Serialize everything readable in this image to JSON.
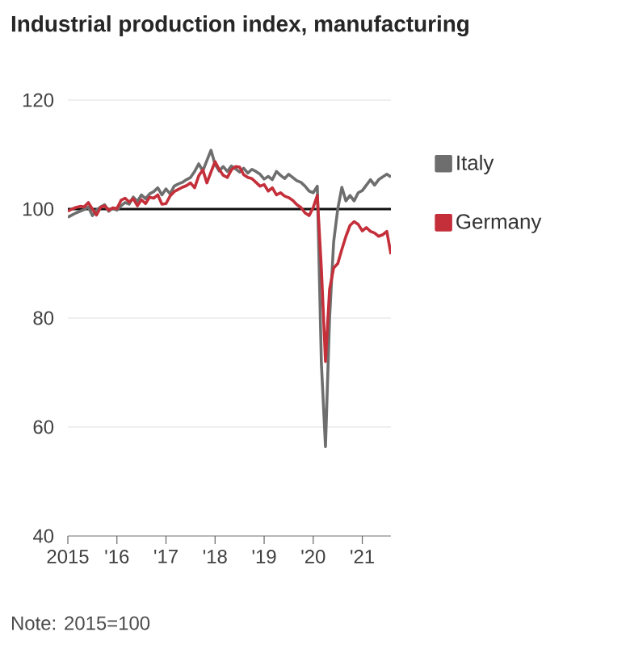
{
  "chart_data": {
    "type": "line",
    "title": "Industrial production index, manufacturing",
    "annotations": [
      "Note: 2015=100"
    ],
    "x": [
      "2015-01",
      "2015-02",
      "2015-03",
      "2015-04",
      "2015-05",
      "2015-06",
      "2015-07",
      "2015-08",
      "2015-09",
      "2015-10",
      "2015-11",
      "2015-12",
      "2016-01",
      "2016-02",
      "2016-03",
      "2016-04",
      "2016-05",
      "2016-06",
      "2016-07",
      "2016-08",
      "2016-09",
      "2016-10",
      "2016-11",
      "2016-12",
      "2017-01",
      "2017-02",
      "2017-03",
      "2017-04",
      "2017-05",
      "2017-06",
      "2017-07",
      "2017-08",
      "2017-09",
      "2017-10",
      "2017-11",
      "2017-12",
      "2018-01",
      "2018-02",
      "2018-03",
      "2018-04",
      "2018-05",
      "2018-06",
      "2018-07",
      "2018-08",
      "2018-09",
      "2018-10",
      "2018-11",
      "2018-12",
      "2019-01",
      "2019-02",
      "2019-03",
      "2019-04",
      "2019-05",
      "2019-06",
      "2019-07",
      "2019-08",
      "2019-09",
      "2019-10",
      "2019-11",
      "2019-12",
      "2020-01",
      "2020-02",
      "2020-03",
      "2020-04",
      "2020-05",
      "2020-06",
      "2020-07",
      "2020-08",
      "2020-09",
      "2020-10",
      "2020-11",
      "2020-12",
      "2021-01",
      "2021-02",
      "2021-03",
      "2021-04",
      "2021-05",
      "2021-06",
      "2021-07",
      "2021-08"
    ],
    "series": [
      {
        "name": "Italy",
        "color": "#6e6e6e",
        "values": [
          98.5,
          98.9,
          99.3,
          99.6,
          99.9,
          100.4,
          98.8,
          99.8,
          100.4,
          100.8,
          99.6,
          100.2,
          99.8,
          100.6,
          101.2,
          100.9,
          102.2,
          101.4,
          102.6,
          101.9,
          102.8,
          103.2,
          103.9,
          102.6,
          103.7,
          102.8,
          104.2,
          104.6,
          104.9,
          105.4,
          105.8,
          106.9,
          108.3,
          107.0,
          108.9,
          110.8,
          108.2,
          107.0,
          107.8,
          106.9,
          107.9,
          107.4,
          106.8,
          107.5,
          106.6,
          107.3,
          106.9,
          106.4,
          105.5,
          106.0,
          105.4,
          106.9,
          106.2,
          105.6,
          106.4,
          105.8,
          105.2,
          104.9,
          104.2,
          103.3,
          103.0,
          104.2,
          71.6,
          56.4,
          80,
          94,
          100,
          104,
          101.5,
          102.5,
          101.5,
          103,
          103.4,
          104.4,
          105.4,
          104.4,
          105.4,
          105.9,
          106.4,
          105.9
        ]
      },
      {
        "name": "Germany",
        "color": "#c42f3a",
        "values": [
          99.6,
          100.0,
          100.3,
          100.5,
          100.4,
          101.2,
          100.0,
          98.9,
          100.3,
          100.6,
          99.8,
          100.2,
          100.1,
          101.6,
          102.0,
          101.3,
          101.9,
          100.6,
          101.7,
          101.0,
          102.2,
          102.0,
          102.6,
          100.9,
          101.0,
          102.4,
          103.2,
          103.6,
          104.0,
          104.3,
          104.8,
          103.9,
          106.1,
          107.2,
          104.8,
          106.8,
          108.7,
          107.3,
          106.2,
          105.8,
          107.2,
          107.8,
          107.7,
          106.3,
          105.8,
          105.6,
          104.9,
          104.2,
          104.5,
          103.3,
          103.9,
          102.6,
          103.0,
          102.4,
          102.1,
          101.6,
          100.8,
          100.3,
          99.3,
          98.8,
          100.3,
          102.5,
          89,
          72,
          85.3,
          89.2,
          90,
          92.6,
          95,
          97,
          97.7,
          97.2,
          96,
          96.6,
          95.9,
          95.6,
          95,
          95.3,
          95.9,
          91.7
        ]
      }
    ],
    "xlim": [
      "2015-01",
      "2021-08"
    ],
    "xticks": [
      {
        "value": "2015",
        "label": "2015"
      },
      {
        "value": "2016",
        "label": "'16"
      },
      {
        "value": "2017",
        "label": "'17"
      },
      {
        "value": "2018",
        "label": "'18"
      },
      {
        "value": "2019",
        "label": "'19"
      },
      {
        "value": "2020",
        "label": "'20"
      },
      {
        "value": "2021",
        "label": "'21"
      }
    ],
    "ylim": [
      40,
      120
    ],
    "yticks": [
      40,
      60,
      80,
      100,
      120
    ],
    "ref_lines": [
      {
        "axis": "y",
        "value": 100,
        "color": "#111111"
      }
    ],
    "grid": "y",
    "legend": "right"
  }
}
